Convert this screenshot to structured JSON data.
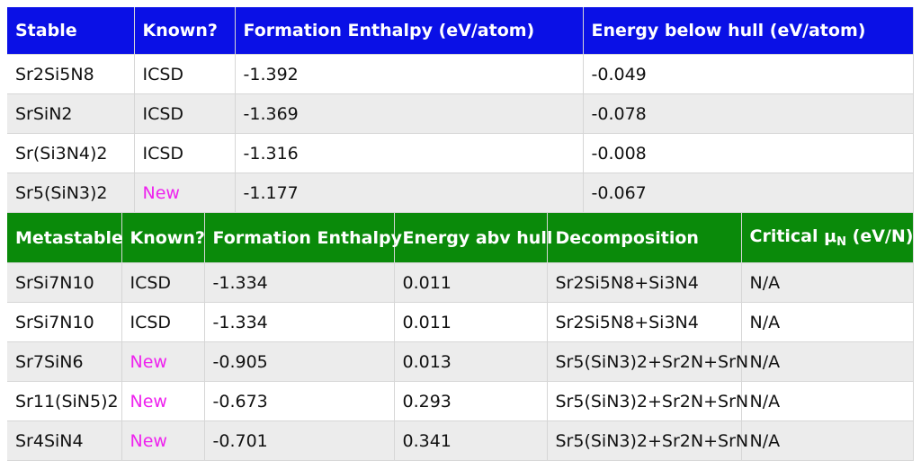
{
  "stable": {
    "headers": [
      "Stable",
      "Known?",
      "Formation Enthalpy (eV/atom)",
      "Energy below hull (eV/atom)"
    ],
    "rows": [
      {
        "formula": "Sr2Si5N8",
        "known": "ICSD",
        "enthalpy": "-1.392",
        "hull": "-0.049"
      },
      {
        "formula": "SrSiN2",
        "known": "ICSD",
        "enthalpy": "-1.369",
        "hull": "-0.078"
      },
      {
        "formula": "Sr(Si3N4)2",
        "known": "ICSD",
        "enthalpy": "-1.316",
        "hull": "-0.008"
      },
      {
        "formula": "Sr5(SiN3)2",
        "known": "New",
        "enthalpy": "-1.177",
        "hull": "-0.067"
      }
    ]
  },
  "metastable": {
    "headers": [
      "Metastable",
      "Known?",
      "Formation Enthalpy",
      "Energy abv hull",
      "Decomposition"
    ],
    "critical_header": {
      "prefix": "Critical ",
      "mu": "μ",
      "sub": "N",
      "suffix": " (eV/N)"
    },
    "rows": [
      {
        "formula": "SrSi7N10",
        "known": "ICSD",
        "enthalpy": "-1.334",
        "hull": "0.011",
        "decomposition": "Sr2Si5N8+Si3N4",
        "critical": "N/A"
      },
      {
        "formula": "SrSi7N10",
        "known": "ICSD",
        "enthalpy": "-1.334",
        "hull": "0.011",
        "decomposition": "Sr2Si5N8+Si3N4",
        "critical": "N/A"
      },
      {
        "formula": "Sr7SiN6",
        "known": "New",
        "enthalpy": "-0.905",
        "hull": "0.013",
        "decomposition": "Sr5(SiN3)2+Sr2N+SrN",
        "critical": "N/A"
      },
      {
        "formula": "Sr11(SiN5)2",
        "known": "New",
        "enthalpy": "-0.673",
        "hull": "0.293",
        "decomposition": "Sr5(SiN3)2+Sr2N+SrN",
        "critical": "N/A"
      },
      {
        "formula": "Sr4SiN4",
        "known": "New",
        "enthalpy": "-0.701",
        "hull": "0.341",
        "decomposition": "Sr5(SiN3)2+Sr2N+SrN",
        "critical": "N/A"
      }
    ]
  },
  "colors": {
    "stable_header": "#0a10e6",
    "metastable_header": "#0a8a0a",
    "new_label": "#ee22ee",
    "row_alt": "#ececec"
  }
}
